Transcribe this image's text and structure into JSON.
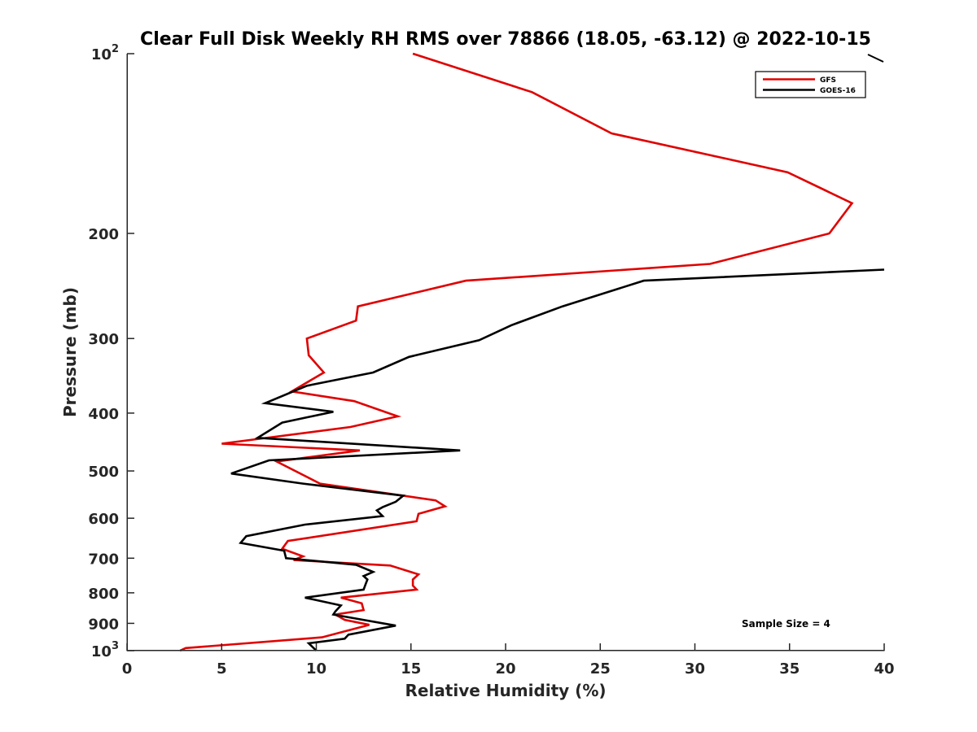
{
  "chart_data": {
    "type": "line",
    "title": "Clear Full Disk Weekly RH RMS over 78866 (18.05, -63.12) @ 2022-10-15",
    "xlabel": "Relative Humidity (%)",
    "ylabel": "Pressure (mb)",
    "xlim": [
      0,
      40
    ],
    "ylim": [
      100,
      1000
    ],
    "yscale": "log",
    "y_reversed": true,
    "grid": false,
    "legend_position": "top-right",
    "x_ticks": [
      "0",
      "5",
      "10",
      "15",
      "20",
      "25",
      "30",
      "35",
      "40"
    ],
    "y_ticks": [
      {
        "value": 100,
        "base": "10",
        "exp": "2"
      },
      {
        "value": 200,
        "label": "200"
      },
      {
        "value": 300,
        "label": "300"
      },
      {
        "value": 400,
        "label": "400"
      },
      {
        "value": 500,
        "label": "500"
      },
      {
        "value": 600,
        "label": "600"
      },
      {
        "value": 700,
        "label": "700"
      },
      {
        "value": 800,
        "label": "800"
      },
      {
        "value": 900,
        "label": "900"
      },
      {
        "value": 1000,
        "base": "10",
        "exp": "3"
      }
    ],
    "annotation": "Sample Size = 4",
    "series": [
      {
        "name": "GFS",
        "color": "#e00000",
        "points": [
          [
            15.1,
            100
          ],
          [
            21.4,
            116
          ],
          [
            25.6,
            136
          ],
          [
            34.9,
            158
          ],
          [
            38.3,
            178
          ],
          [
            37.1,
            200
          ],
          [
            30.8,
            225
          ],
          [
            17.9,
            240
          ],
          [
            12.2,
            265
          ],
          [
            12.1,
            280
          ],
          [
            9.5,
            300
          ],
          [
            9.6,
            320
          ],
          [
            10.4,
            342
          ],
          [
            8.7,
            368
          ],
          [
            12.0,
            382
          ],
          [
            14.3,
            405
          ],
          [
            11.8,
            422
          ],
          [
            5.0,
            450
          ],
          [
            12.3,
            462
          ],
          [
            7.9,
            482
          ],
          [
            10.2,
            525
          ],
          [
            16.3,
            560
          ],
          [
            16.8,
            573
          ],
          [
            15.4,
            590
          ],
          [
            15.3,
            607
          ],
          [
            8.5,
            655
          ],
          [
            8.2,
            675
          ],
          [
            9.3,
            695
          ],
          [
            8.8,
            705
          ],
          [
            13.9,
            720
          ],
          [
            15.4,
            745
          ],
          [
            15.1,
            760
          ],
          [
            15.1,
            778
          ],
          [
            15.3,
            790
          ],
          [
            11.3,
            815
          ],
          [
            12.4,
            833
          ],
          [
            12.5,
            855
          ],
          [
            11.0,
            870
          ],
          [
            11.5,
            888
          ],
          [
            12.8,
            905
          ],
          [
            10.3,
            950
          ],
          [
            3.1,
            990
          ],
          [
            2.8,
            1000
          ]
        ]
      },
      {
        "name": "GOES-16",
        "color": "#000000",
        "points": [
          [
            40.0,
            230
          ],
          [
            27.3,
            240
          ],
          [
            23.0,
            265
          ],
          [
            20.3,
            285
          ],
          [
            18.6,
            302
          ],
          [
            14.9,
            322
          ],
          [
            13.0,
            342
          ],
          [
            9.5,
            360
          ],
          [
            7.3,
            385
          ],
          [
            10.9,
            398
          ],
          [
            8.2,
            415
          ],
          [
            6.9,
            440
          ],
          [
            17.6,
            462
          ],
          [
            7.5,
            480
          ],
          [
            5.5,
            505
          ],
          [
            9.3,
            525
          ],
          [
            14.6,
            550
          ],
          [
            14.2,
            563
          ],
          [
            13.5,
            575
          ],
          [
            13.2,
            582
          ],
          [
            13.5,
            595
          ],
          [
            9.4,
            615
          ],
          [
            6.3,
            643
          ],
          [
            6.0,
            660
          ],
          [
            8.3,
            680
          ],
          [
            8.4,
            700
          ],
          [
            12.1,
            718
          ],
          [
            13.0,
            738
          ],
          [
            12.5,
            750
          ],
          [
            12.7,
            760
          ],
          [
            12.6,
            775
          ],
          [
            12.5,
            790
          ],
          [
            9.4,
            815
          ],
          [
            11.3,
            840
          ],
          [
            11.0,
            860
          ],
          [
            10.9,
            870
          ],
          [
            14.2,
            908
          ],
          [
            11.7,
            940
          ],
          [
            11.5,
            955
          ],
          [
            9.6,
            972
          ],
          [
            10.0,
            1000
          ]
        ]
      }
    ]
  }
}
